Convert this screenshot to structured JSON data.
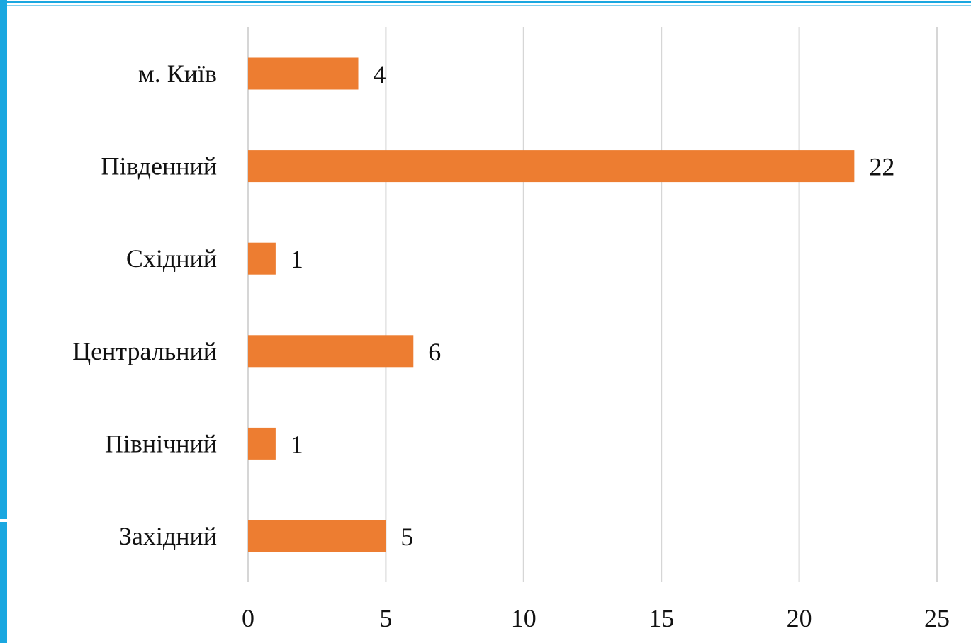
{
  "chart_data": {
    "type": "bar",
    "orientation": "horizontal",
    "categories": [
      "м. Київ",
      "Південний",
      "Східний",
      "Центральний",
      "Північний",
      "Західний"
    ],
    "values": [
      4,
      22,
      1,
      6,
      1,
      5
    ],
    "xlim": [
      0,
      25
    ],
    "xticks": [
      0,
      5,
      10,
      15,
      20,
      25
    ],
    "bar_color": "#ED7D31",
    "grid": "vertical",
    "data_labels": true,
    "legend": "none"
  },
  "frame": {
    "accent_color": "#1AA7E0"
  }
}
